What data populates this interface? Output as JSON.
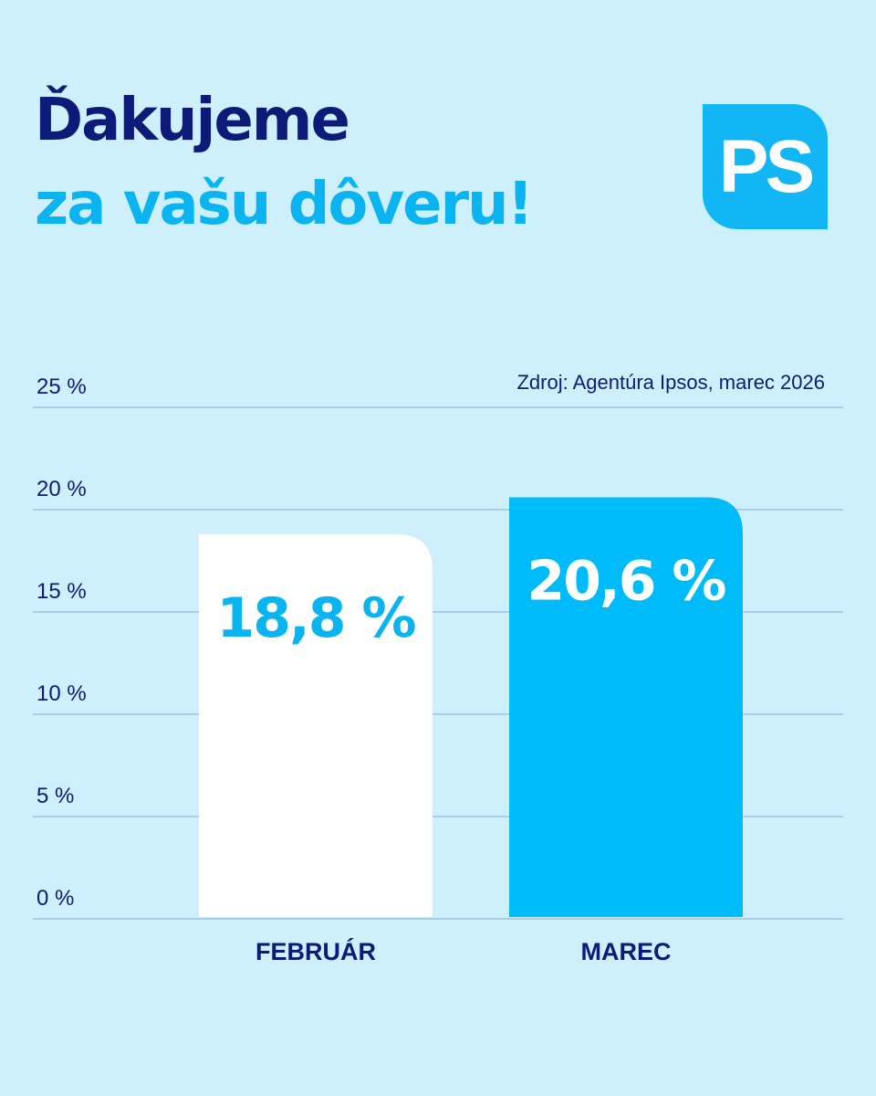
{
  "header": {
    "title_line1": "Ďakujeme",
    "title_line2": "za vašu dôveru!"
  },
  "logo": {
    "text": "PS"
  },
  "source": "Zdroj: Agentúra Ipsos, marec 2026",
  "colors": {
    "background": "#cdf0fc",
    "navy": "#0d1a78",
    "accent": "#0ab4f0",
    "bar_marec": "#00bbf9",
    "bar_februar": "#ffffff",
    "gridline": "#a9cfe6"
  },
  "chart_data": {
    "type": "bar",
    "title": "",
    "xlabel": "",
    "ylabel": "",
    "categories": [
      "FEBRUÁR",
      "MAREC"
    ],
    "values": [
      18.8,
      20.6
    ],
    "value_labels": [
      "18,8 %",
      "20,6 %"
    ],
    "ylim": [
      0,
      25
    ],
    "y_ticks": [
      0,
      5,
      10,
      15,
      20,
      25
    ],
    "y_tick_labels": [
      "0 %",
      "5 %",
      "10 %",
      "15 %",
      "20 %",
      "25 %"
    ],
    "grid": true,
    "legend": "none"
  }
}
